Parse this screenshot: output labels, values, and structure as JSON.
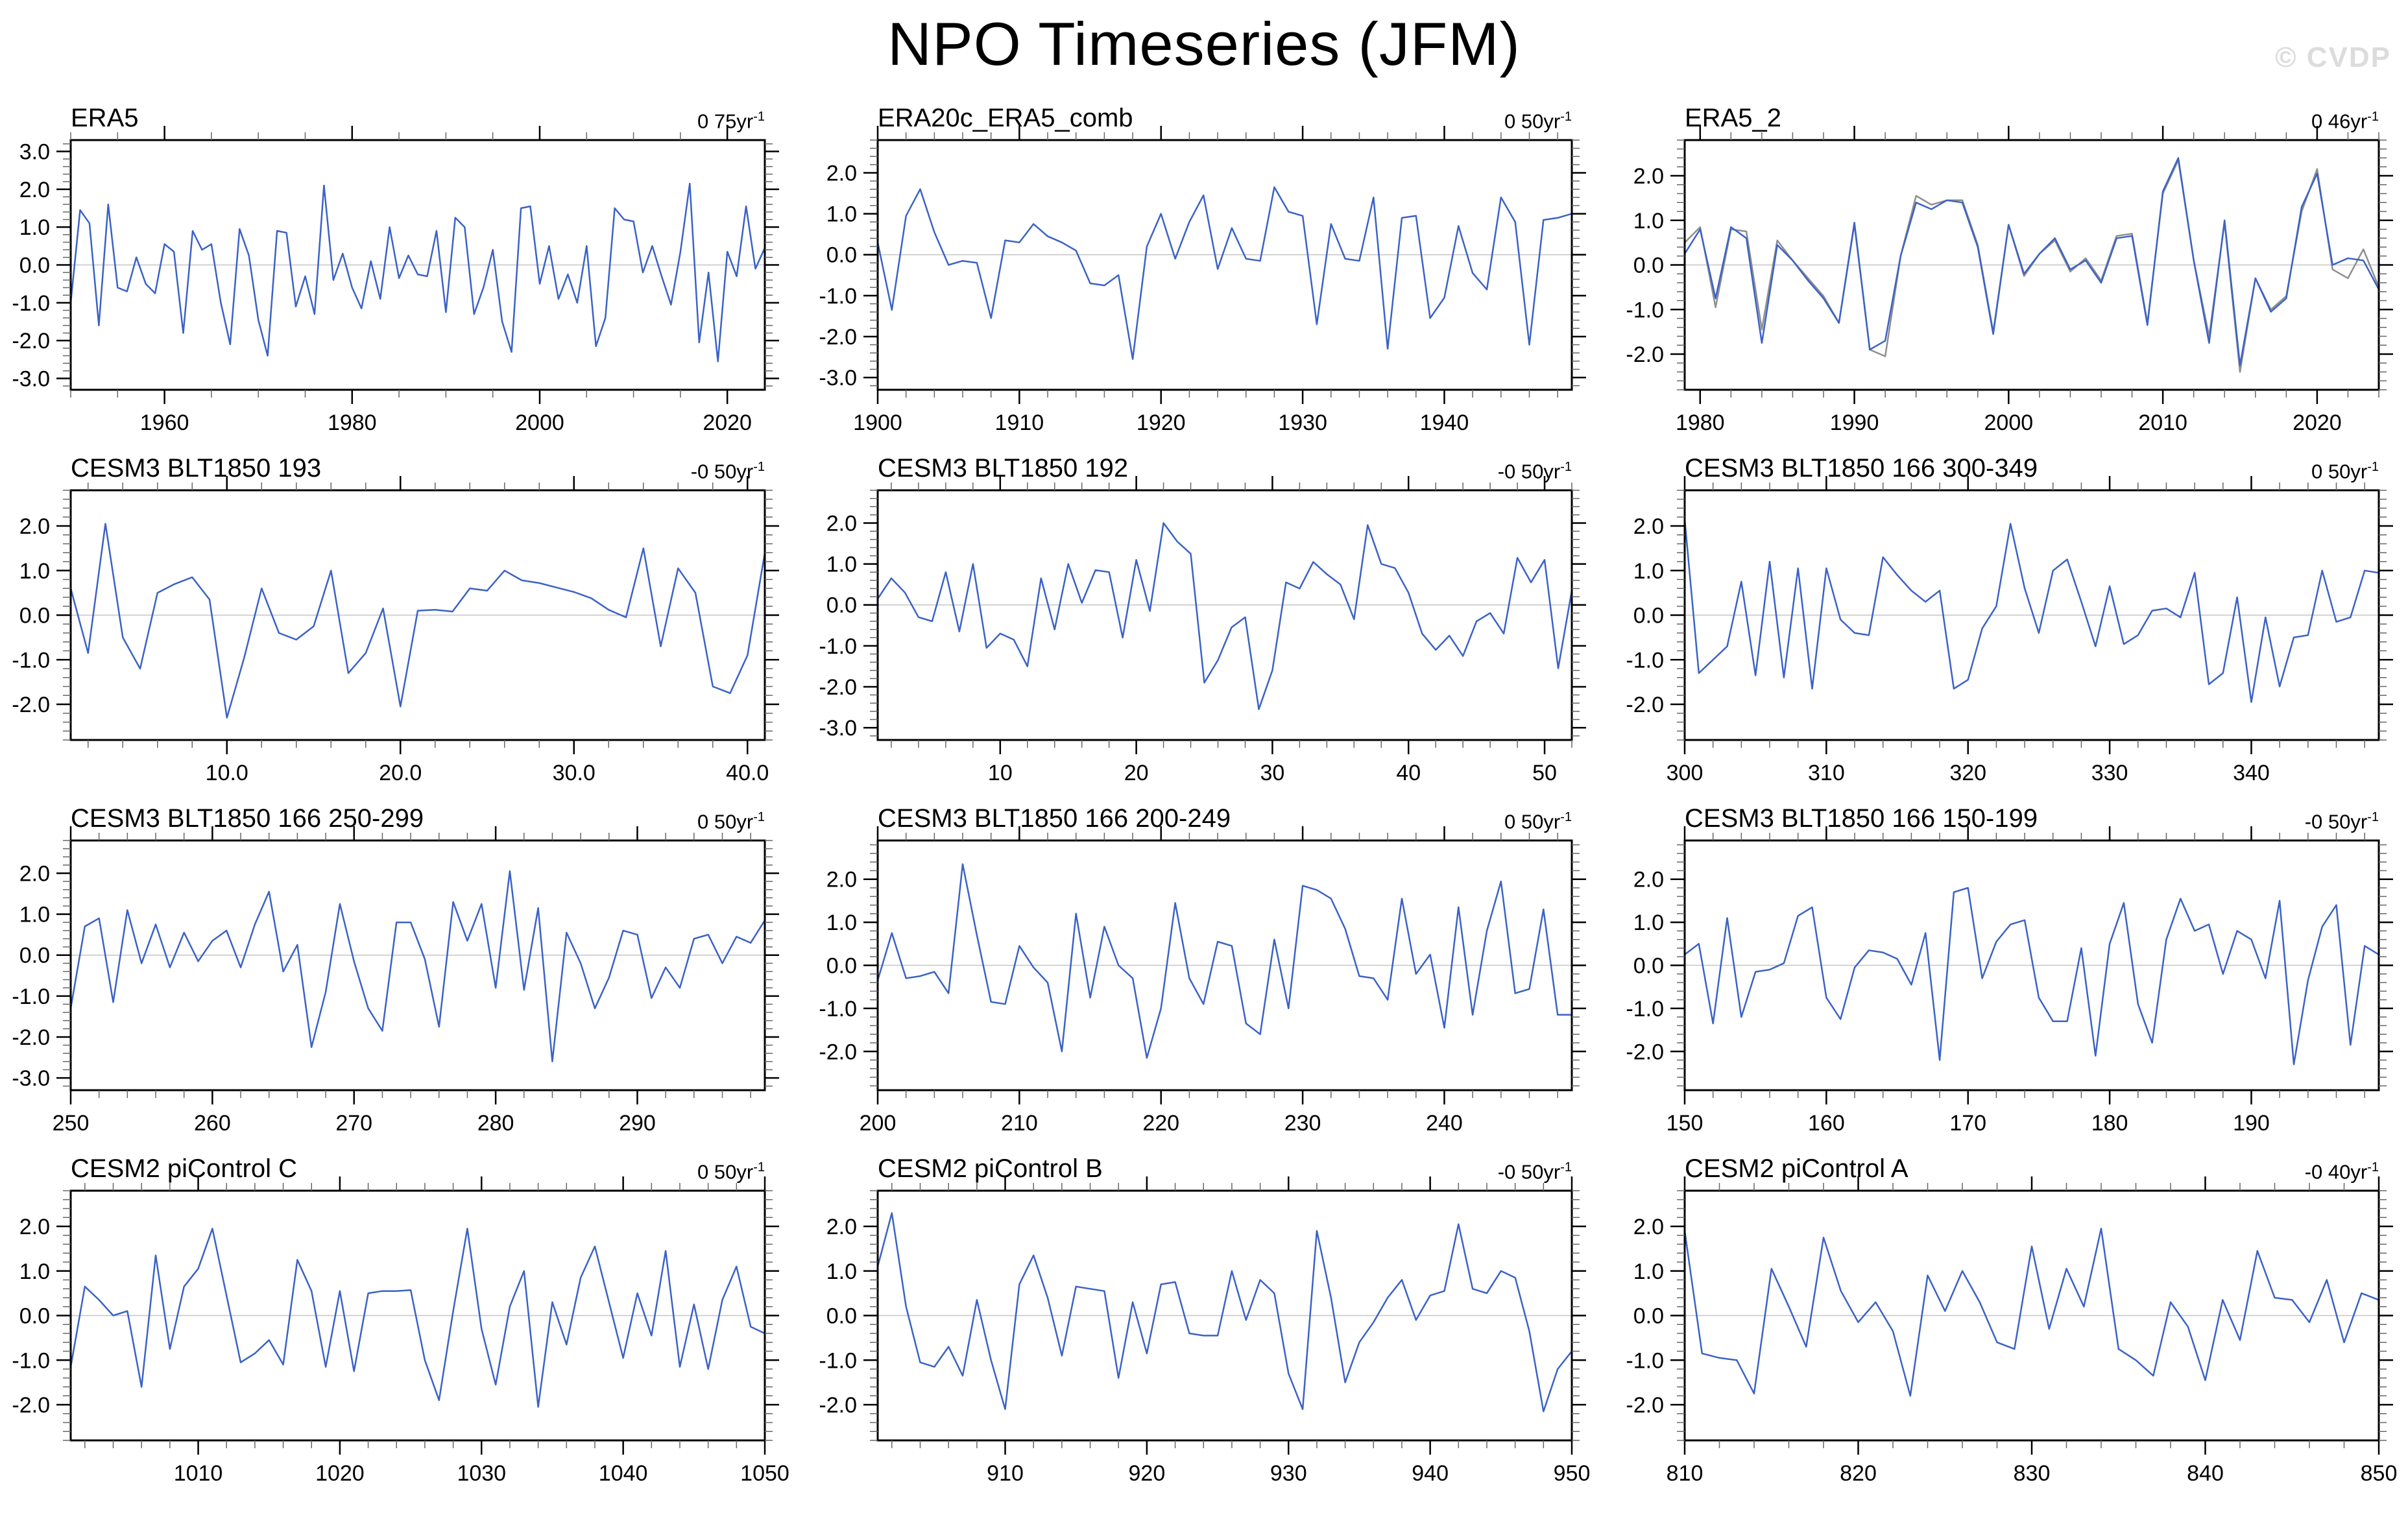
{
  "page": {
    "title": "NPO Timeseries (JFM)",
    "watermark": "© CVDP"
  },
  "style": {
    "line_color": "#3B62C6",
    "secondary_line_color": "#8E8E8E",
    "zero_line_color": "#C6C6C6",
    "frame_color": "#000000",
    "major_tick_color": "#000000",
    "minor_tick_color": "#666666",
    "watermark_color": "#DCDCDC"
  },
  "chart_data": [
    {
      "type": "line",
      "title": "ERA5",
      "trend_main": "0 75yr",
      "trend_exp": "-1",
      "x_start": 1950,
      "x_end": 2024,
      "x_major_ticks": [
        1960,
        1980,
        2000,
        2020
      ],
      "x_minor_step": 5,
      "x_label_decimals": 0,
      "y_labels": [
        3.0,
        2.0,
        1.0,
        0.0,
        -1.0,
        -2.0,
        -3.0
      ],
      "y_minor_step": 0.2,
      "y_frame_max": 3.3,
      "y_frame_min": -3.3,
      "series": [
        {
          "name": "ERA5",
          "color": "#3B62C6",
          "values": [
            -1.0,
            1.45,
            1.1,
            -1.6,
            1.6,
            -0.6,
            -0.7,
            0.2,
            -0.5,
            -0.75,
            0.55,
            0.35,
            -1.8,
            0.9,
            0.4,
            0.55,
            -1.0,
            -2.1,
            0.95,
            0.25,
            -1.45,
            -2.4,
            0.9,
            0.85,
            -1.1,
            -0.3,
            -1.3,
            2.1,
            -0.4,
            0.3,
            -0.6,
            -1.15,
            0.1,
            -0.9,
            1.0,
            -0.35,
            0.25,
            -0.25,
            -0.3,
            0.9,
            -1.25,
            1.25,
            1.0,
            -1.3,
            -0.6,
            0.4,
            -1.5,
            -2.3,
            1.5,
            1.55,
            -0.5,
            0.5,
            -0.9,
            -0.25,
            -1.0,
            0.5,
            -2.15,
            -1.4,
            1.5,
            1.2,
            1.15,
            -0.2,
            0.5,
            -0.3,
            -1.05,
            0.35,
            2.15,
            -2.05,
            -0.2,
            -2.55,
            0.35,
            -0.3,
            1.55,
            -0.1,
            0.45
          ]
        }
      ]
    },
    {
      "type": "line",
      "title": "ERA20c_ERA5_comb",
      "trend_main": "0 50yr",
      "trend_exp": "-1",
      "x_start": 1900,
      "x_end": 1949,
      "x_major_ticks": [
        1900,
        1910,
        1920,
        1930,
        1940
      ],
      "x_minor_step": 2,
      "x_label_decimals": 0,
      "y_labels": [
        2.0,
        1.0,
        0.0,
        -1.0,
        -2.0,
        -3.0
      ],
      "y_minor_step": 0.2,
      "y_frame_max": 2.8,
      "y_frame_min": -3.3,
      "series": [
        {
          "name": "ERA20c_ERA5_comb",
          "color": "#3B62C6",
          "values": [
            0.3,
            -1.35,
            0.95,
            1.6,
            0.55,
            -0.25,
            -0.15,
            -0.2,
            -1.55,
            0.35,
            0.3,
            0.75,
            0.45,
            0.3,
            0.1,
            -0.7,
            -0.75,
            -0.5,
            -2.55,
            0.2,
            1.0,
            -0.1,
            0.8,
            1.45,
            -0.35,
            0.65,
            -0.1,
            -0.15,
            1.65,
            1.05,
            0.95,
            -1.7,
            0.75,
            -0.1,
            -0.15,
            1.4,
            -2.3,
            0.9,
            0.95,
            -1.55,
            -1.05,
            0.7,
            -0.45,
            -0.85,
            1.4,
            0.8,
            -2.2,
            0.85,
            0.9,
            1.0
          ]
        }
      ]
    },
    {
      "type": "line",
      "title": "ERA5_2",
      "trend_main": "0 46yr",
      "trend_exp": "-1",
      "x_start": 1979,
      "x_end": 2024,
      "x_major_ticks": [
        1980,
        1990,
        2000,
        2010,
        2020
      ],
      "x_minor_step": 2,
      "x_label_decimals": 0,
      "y_labels": [
        2.0,
        1.0,
        0.0,
        -1.0,
        -2.0
      ],
      "y_minor_step": 0.2,
      "y_frame_max": 2.8,
      "y_frame_min": -2.8,
      "series": [
        {
          "name": "member-gray",
          "color": "#8E8E8E",
          "values": [
            0.5,
            0.85,
            -0.95,
            0.8,
            0.75,
            -1.45,
            0.55,
            0.1,
            -0.3,
            -0.7,
            -1.3,
            0.9,
            -1.9,
            -2.05,
            0.2,
            1.55,
            1.35,
            1.45,
            1.45,
            0.45,
            -1.5,
            0.9,
            -0.25,
            0.25,
            0.55,
            -0.15,
            0.15,
            -0.35,
            0.65,
            0.7,
            -1.3,
            1.6,
            2.35,
            0.1,
            -1.6,
            0.95,
            -2.4,
            -0.3,
            -1.0,
            -0.7,
            1.2,
            2.15,
            -0.1,
            -0.3,
            0.35,
            -0.5
          ]
        },
        {
          "name": "member-blue",
          "color": "#3B62C6",
          "values": [
            0.25,
            0.8,
            -0.75,
            0.85,
            0.6,
            -1.75,
            0.45,
            0.1,
            -0.35,
            -0.75,
            -1.3,
            0.95,
            -1.9,
            -1.7,
            0.2,
            1.4,
            1.25,
            1.45,
            1.4,
            0.4,
            -1.55,
            0.9,
            -0.2,
            0.25,
            0.6,
            -0.1,
            0.1,
            -0.4,
            0.6,
            0.65,
            -1.35,
            1.65,
            2.4,
            0.1,
            -1.75,
            1.0,
            -2.25,
            -0.3,
            -1.05,
            -0.75,
            1.3,
            2.05,
            0.0,
            0.15,
            0.1,
            -0.55
          ]
        }
      ]
    },
    {
      "type": "line",
      "title": "CESM3 BLT1850 193",
      "trend_main": "-0 50yr",
      "trend_exp": "-1",
      "x_start": 1,
      "x_end": 41,
      "x_major_ticks": [
        10,
        20,
        30,
        40
      ],
      "x_minor_step": 2,
      "x_label_decimals": 1,
      "y_labels": [
        2.0,
        1.0,
        0.0,
        -1.0,
        -2.0
      ],
      "y_minor_step": 0.2,
      "y_frame_max": 2.8,
      "y_frame_min": -2.8,
      "series": [
        {
          "name": "CESM3 BLT1850 193",
          "color": "#3B62C6",
          "values": [
            0.6,
            -0.85,
            2.05,
            -0.5,
            -1.2,
            0.5,
            0.7,
            0.85,
            0.35,
            -2.3,
            -0.95,
            0.6,
            -0.4,
            -0.55,
            -0.25,
            1.0,
            -1.3,
            -0.85,
            0.15,
            -2.05,
            0.1,
            0.12,
            0.08,
            0.6,
            0.55,
            1.0,
            0.78,
            0.72,
            0.62,
            0.52,
            0.38,
            0.12,
            -0.05,
            1.5,
            -0.7,
            1.05,
            0.5,
            -1.6,
            -1.75,
            -0.9,
            1.4
          ]
        }
      ]
    },
    {
      "type": "line",
      "title": "CESM3 BLT1850 192",
      "trend_main": "-0 50yr",
      "trend_exp": "-1",
      "x_start": 1,
      "x_end": 52,
      "x_major_ticks": [
        10,
        20,
        30,
        40,
        50
      ],
      "x_minor_step": 2,
      "x_label_decimals": 0,
      "y_labels": [
        2.0,
        1.0,
        0.0,
        -1.0,
        -2.0,
        -3.0
      ],
      "y_minor_step": 0.2,
      "y_frame_max": 2.8,
      "y_frame_min": -3.3,
      "series": [
        {
          "name": "CESM3 BLT1850 192",
          "color": "#3B62C6",
          "values": [
            0.15,
            0.65,
            0.3,
            -0.3,
            -0.4,
            0.8,
            -0.65,
            1.0,
            -1.05,
            -0.7,
            -0.85,
            -1.5,
            0.65,
            -0.6,
            1.0,
            0.05,
            0.85,
            0.8,
            -0.8,
            1.1,
            -0.15,
            2.0,
            1.55,
            1.25,
            -1.9,
            -1.35,
            -0.55,
            -0.3,
            -2.55,
            -1.6,
            0.55,
            0.4,
            1.05,
            0.75,
            0.5,
            -0.35,
            1.95,
            1.0,
            0.9,
            0.3,
            -0.7,
            -1.1,
            -0.75,
            -1.25,
            -0.4,
            -0.2,
            -0.7,
            1.15,
            0.55,
            1.1,
            -1.55,
            0.35
          ]
        }
      ]
    },
    {
      "type": "line",
      "title": "CESM3 BLT1850 166 300-349",
      "trend_main": "0 50yr",
      "trend_exp": "-1",
      "x_start": 300,
      "x_end": 349,
      "x_major_ticks": [
        300,
        310,
        320,
        330,
        340
      ],
      "x_minor_step": 2,
      "x_label_decimals": 0,
      "y_labels": [
        2.0,
        1.0,
        0.0,
        -1.0,
        -2.0
      ],
      "y_minor_step": 0.2,
      "y_frame_max": 2.8,
      "y_frame_min": -2.8,
      "series": [
        {
          "name": "CESM3 BLT1850 166 300-349",
          "color": "#3B62C6",
          "values": [
            2.15,
            -1.3,
            -1.0,
            -0.7,
            0.75,
            -1.35,
            1.2,
            -1.4,
            1.05,
            -1.65,
            1.05,
            -0.1,
            -0.4,
            -0.45,
            1.3,
            0.9,
            0.55,
            0.3,
            0.55,
            -1.65,
            -1.45,
            -0.3,
            0.2,
            2.05,
            0.6,
            -0.4,
            1.0,
            1.25,
            0.3,
            -0.7,
            0.65,
            -0.65,
            -0.45,
            0.1,
            0.15,
            -0.05,
            0.95,
            -1.55,
            -1.3,
            0.4,
            -1.95,
            -0.05,
            -1.6,
            -0.5,
            -0.45,
            1.0,
            -0.15,
            -0.05,
            1.0,
            0.95
          ]
        }
      ]
    },
    {
      "type": "line",
      "title": "CESM3 BLT1850 166 250-299",
      "trend_main": "0 50yr",
      "trend_exp": "-1",
      "x_start": 250,
      "x_end": 299,
      "x_major_ticks": [
        250,
        260,
        270,
        280,
        290
      ],
      "x_minor_step": 2,
      "x_label_decimals": 0,
      "y_labels": [
        2.0,
        1.0,
        0.0,
        -1.0,
        -2.0,
        -3.0
      ],
      "y_minor_step": 0.2,
      "y_frame_max": 2.8,
      "y_frame_min": -3.3,
      "series": [
        {
          "name": "CESM3 BLT1850 166 250-299",
          "color": "#3B62C6",
          "values": [
            -1.3,
            0.7,
            0.9,
            -1.15,
            1.1,
            -0.2,
            0.75,
            -0.3,
            0.55,
            -0.15,
            0.35,
            0.6,
            -0.3,
            0.75,
            1.55,
            -0.4,
            0.25,
            -2.25,
            -0.9,
            1.25,
            -0.15,
            -1.3,
            -1.85,
            0.8,
            0.8,
            -0.1,
            -1.75,
            1.3,
            0.35,
            1.25,
            -0.8,
            2.05,
            -0.85,
            1.15,
            -2.6,
            0.55,
            -0.2,
            -1.3,
            -0.55,
            0.6,
            0.5,
            -1.05,
            -0.3,
            -0.8,
            0.4,
            0.5,
            -0.2,
            0.45,
            0.3,
            0.85
          ]
        }
      ]
    },
    {
      "type": "line",
      "title": "CESM3 BLT1850 166 200-249",
      "trend_main": "0 50yr",
      "trend_exp": "-1",
      "x_start": 200,
      "x_end": 249,
      "x_major_ticks": [
        200,
        210,
        220,
        230,
        240
      ],
      "x_minor_step": 2,
      "x_label_decimals": 0,
      "y_labels": [
        2.0,
        1.0,
        0.0,
        -1.0,
        -2.0
      ],
      "y_minor_step": 0.2,
      "y_frame_max": 2.9,
      "y_frame_min": -2.9,
      "series": [
        {
          "name": "CESM3 BLT1850 166 200-249",
          "color": "#3B62C6",
          "values": [
            -0.35,
            0.75,
            -0.3,
            -0.25,
            -0.15,
            -0.65,
            2.35,
            0.7,
            -0.85,
            -0.9,
            0.45,
            -0.05,
            -0.4,
            -2.0,
            1.2,
            -0.75,
            0.9,
            0.0,
            -0.3,
            -2.15,
            -1.0,
            1.45,
            -0.3,
            -0.9,
            0.55,
            0.45,
            -1.35,
            -1.6,
            0.6,
            -1.0,
            1.85,
            1.75,
            1.55,
            0.85,
            -0.25,
            -0.3,
            -0.8,
            1.55,
            -0.2,
            0.25,
            -1.45,
            1.35,
            -1.15,
            0.8,
            1.95,
            -0.65,
            -0.55,
            1.3,
            -1.15,
            -1.15
          ]
        }
      ]
    },
    {
      "type": "line",
      "title": "CESM3 BLT1850 166 150-199",
      "trend_main": "-0 50yr",
      "trend_exp": "-1",
      "x_start": 150,
      "x_end": 199,
      "x_major_ticks": [
        150,
        160,
        170,
        180,
        190
      ],
      "x_minor_step": 2,
      "x_label_decimals": 0,
      "y_labels": [
        2.0,
        1.0,
        0.0,
        -1.0,
        -2.0
      ],
      "y_minor_step": 0.2,
      "y_frame_max": 2.9,
      "y_frame_min": -2.9,
      "series": [
        {
          "name": "CESM3 BLT1850 166 150-199",
          "color": "#3B62C6",
          "values": [
            0.25,
            0.5,
            -1.35,
            1.1,
            -1.2,
            -0.15,
            -0.1,
            0.05,
            1.15,
            1.35,
            -0.75,
            -1.25,
            -0.05,
            0.35,
            0.3,
            0.15,
            -0.45,
            0.75,
            -2.2,
            1.7,
            1.8,
            -0.3,
            0.55,
            0.95,
            1.05,
            -0.75,
            -1.3,
            -1.3,
            0.4,
            -2.1,
            0.5,
            1.45,
            -0.9,
            -1.8,
            0.6,
            1.55,
            0.8,
            0.95,
            -0.2,
            0.8,
            0.6,
            -0.3,
            1.5,
            -2.3,
            -0.35,
            0.9,
            1.4,
            -1.85,
            0.45,
            0.25
          ]
        }
      ]
    },
    {
      "type": "line",
      "title": "CESM2 piControl C",
      "trend_main": "0 50yr",
      "trend_exp": "-1",
      "x_start": 1001,
      "x_end": 1050,
      "x_major_ticks": [
        1010,
        1020,
        1030,
        1040,
        1050
      ],
      "x_minor_step": 2,
      "x_label_decimals": 0,
      "y_labels": [
        2.0,
        1.0,
        0.0,
        -1.0,
        -2.0
      ],
      "y_minor_step": 0.2,
      "y_frame_max": 2.8,
      "y_frame_min": -2.8,
      "series": [
        {
          "name": "CESM2 piControl C",
          "color": "#3B62C6",
          "values": [
            -1.15,
            0.65,
            0.35,
            0.0,
            0.1,
            -1.6,
            1.35,
            -0.75,
            0.65,
            1.05,
            1.95,
            0.45,
            -1.05,
            -0.85,
            -0.55,
            -1.1,
            1.25,
            0.55,
            -1.15,
            0.55,
            -1.25,
            0.5,
            0.55,
            0.55,
            0.57,
            -1.0,
            -1.9,
            0.1,
            1.95,
            -0.3,
            -1.55,
            0.2,
            1.0,
            -2.05,
            0.3,
            -0.65,
            0.85,
            1.55,
            0.3,
            -0.95,
            0.5,
            -0.45,
            1.45,
            -1.15,
            0.25,
            -1.2,
            0.35,
            1.1,
            -0.25,
            -0.4
          ]
        }
      ]
    },
    {
      "type": "line",
      "title": "CESM2 piControl B",
      "trend_main": "-0 50yr",
      "trend_exp": "-1",
      "x_start": 901,
      "x_end": 950,
      "x_major_ticks": [
        910,
        920,
        930,
        940,
        950
      ],
      "x_minor_step": 2,
      "x_label_decimals": 0,
      "y_labels": [
        2.0,
        1.0,
        0.0,
        -1.0,
        -2.0
      ],
      "y_minor_step": 0.2,
      "y_frame_max": 2.8,
      "y_frame_min": -2.8,
      "series": [
        {
          "name": "CESM2 piControl B",
          "color": "#3B62C6",
          "values": [
            1.1,
            2.3,
            0.2,
            -1.05,
            -1.15,
            -0.7,
            -1.35,
            0.35,
            -1.0,
            -2.1,
            0.7,
            1.35,
            0.4,
            -0.9,
            0.65,
            0.6,
            0.55,
            -1.4,
            0.3,
            -0.85,
            0.7,
            0.75,
            -0.4,
            -0.45,
            -0.45,
            1.0,
            -0.1,
            0.8,
            0.5,
            -1.3,
            -2.1,
            1.9,
            0.4,
            -1.5,
            -0.6,
            -0.15,
            0.4,
            0.8,
            -0.1,
            0.45,
            0.55,
            2.05,
            0.6,
            0.5,
            1.0,
            0.85,
            -0.35,
            -2.15,
            -1.2,
            -0.8
          ]
        }
      ]
    },
    {
      "type": "line",
      "title": "CESM2 piControl A",
      "trend_main": "-0 40yr",
      "trend_exp": "-1",
      "x_start": 810,
      "x_end": 850,
      "x_major_ticks": [
        810,
        820,
        830,
        840,
        850
      ],
      "x_minor_step": 2,
      "x_label_decimals": 0,
      "y_labels": [
        2.0,
        1.0,
        0.0,
        -1.0,
        -2.0
      ],
      "y_minor_step": 0.2,
      "y_frame_max": 2.8,
      "y_frame_min": -2.8,
      "series": [
        {
          "name": "CESM2 piControl A",
          "color": "#3B62C6",
          "values": [
            1.9,
            -0.85,
            -0.95,
            -1.0,
            -1.75,
            1.05,
            0.2,
            -0.7,
            1.75,
            0.55,
            -0.15,
            0.3,
            -0.35,
            -1.8,
            0.9,
            0.1,
            1.0,
            0.3,
            -0.6,
            -0.75,
            1.55,
            -0.3,
            1.05,
            0.2,
            1.95,
            -0.75,
            -1.0,
            -1.35,
            0.3,
            -0.25,
            -1.45,
            0.35,
            -0.55,
            1.45,
            0.4,
            0.35,
            -0.15,
            0.8,
            -0.6,
            0.5,
            0.35
          ]
        }
      ]
    }
  ]
}
